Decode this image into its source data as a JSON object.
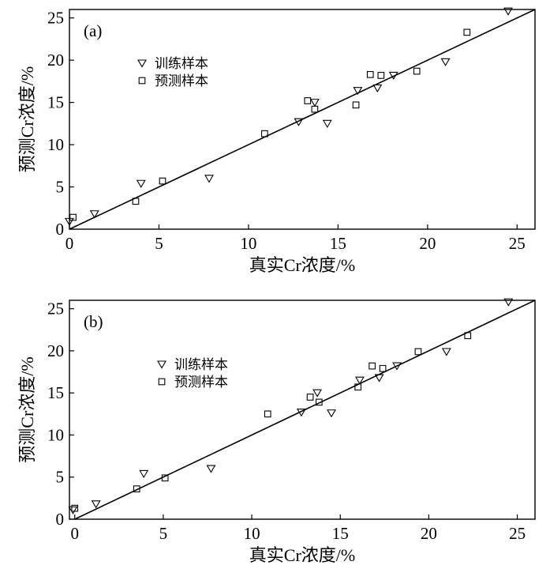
{
  "chart_data": [
    {
      "type": "scatter",
      "panel_label": "(a)",
      "xlabel": "真实Cr浓度/%",
      "ylabel": "预测Cr浓度/%",
      "xlim": [
        0,
        26
      ],
      "ylim": [
        0,
        26
      ],
      "xticks": [
        "0",
        "5",
        "10",
        "15",
        "20",
        "25"
      ],
      "yticks": [
        "0",
        "5",
        "10",
        "15",
        "20",
        "25"
      ],
      "grid": false,
      "legend_position": "upper-left",
      "fit_line": [
        [
          0,
          0
        ],
        [
          26,
          26
        ]
      ],
      "series": [
        {
          "name": "训练样本",
          "marker": "triangle-down",
          "points": [
            [
              0.0,
              0.9
            ],
            [
              1.4,
              1.8
            ],
            [
              4.0,
              5.4
            ],
            [
              7.8,
              6.0
            ],
            [
              12.8,
              12.7
            ],
            [
              13.7,
              15.0
            ],
            [
              14.4,
              12.5
            ],
            [
              16.1,
              16.4
            ],
            [
              17.2,
              16.7
            ],
            [
              18.1,
              18.2
            ],
            [
              21.0,
              19.8
            ],
            [
              24.5,
              25.8
            ]
          ]
        },
        {
          "name": "预测样本",
          "marker": "square",
          "points": [
            [
              0.2,
              1.4
            ],
            [
              3.7,
              3.3
            ],
            [
              5.2,
              5.7
            ],
            [
              10.9,
              11.3
            ],
            [
              13.3,
              15.2
            ],
            [
              13.7,
              14.2
            ],
            [
              16.0,
              14.7
            ],
            [
              16.8,
              18.3
            ],
            [
              17.4,
              18.2
            ],
            [
              19.4,
              18.7
            ],
            [
              22.2,
              23.3
            ]
          ]
        }
      ]
    },
    {
      "type": "scatter",
      "panel_label": "(b)",
      "xlabel": "真实Cr浓度/%",
      "ylabel": "预测Cr浓度/%",
      "xlim": [
        -0.3,
        26
      ],
      "ylim": [
        0,
        26
      ],
      "xticks": [
        "0",
        "5",
        "10",
        "15",
        "20",
        "25"
      ],
      "yticks": [
        "0",
        "5",
        "10",
        "15",
        "20",
        "25"
      ],
      "grid": false,
      "legend_position": "upper-left",
      "fit_line": [
        [
          0,
          0
        ],
        [
          26,
          26
        ]
      ],
      "series": [
        {
          "name": "训练样本",
          "marker": "triangle-down",
          "points": [
            [
              -0.1,
              1.1
            ],
            [
              1.2,
              1.8
            ],
            [
              3.9,
              5.4
            ],
            [
              7.7,
              6.0
            ],
            [
              12.8,
              12.7
            ],
            [
              13.7,
              15.0
            ],
            [
              14.5,
              12.6
            ],
            [
              16.1,
              16.5
            ],
            [
              17.2,
              16.8
            ],
            [
              18.2,
              18.2
            ],
            [
              21.0,
              19.9
            ],
            [
              24.5,
              25.8
            ]
          ]
        },
        {
          "name": "预测样本",
          "marker": "square",
          "points": [
            [
              0.0,
              1.3
            ],
            [
              3.5,
              3.6
            ],
            [
              5.1,
              4.9
            ],
            [
              10.9,
              12.5
            ],
            [
              13.3,
              14.5
            ],
            [
              13.8,
              13.9
            ],
            [
              16.0,
              15.7
            ],
            [
              16.8,
              18.2
            ],
            [
              17.4,
              17.9
            ],
            [
              19.4,
              19.9
            ],
            [
              22.2,
              21.8
            ]
          ]
        }
      ]
    }
  ]
}
